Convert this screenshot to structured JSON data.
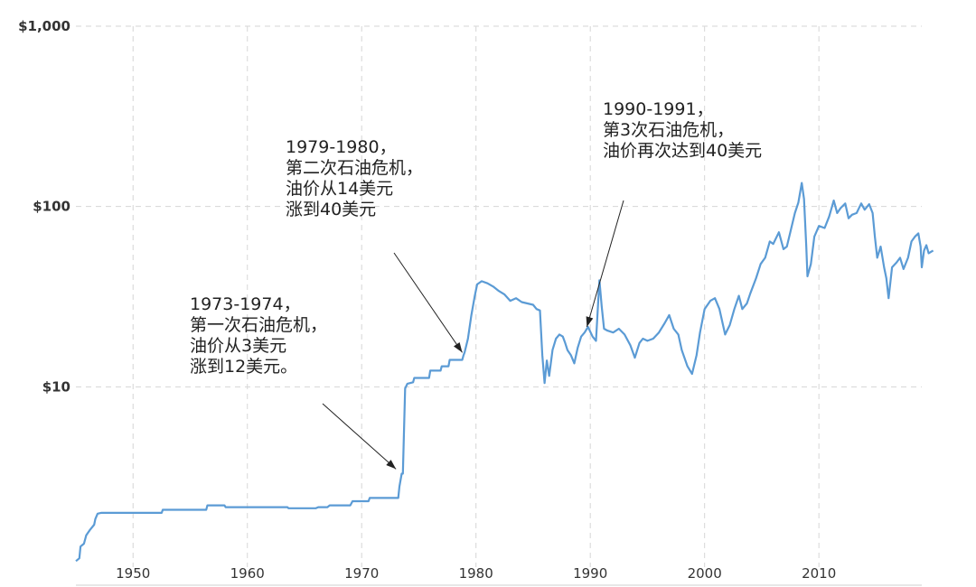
{
  "chart_data": {
    "type": "line",
    "title": "",
    "xlabel": "",
    "ylabel": "",
    "y_scale": "log",
    "ylim": [
      1,
      1000
    ],
    "xlim": [
      1945,
      2019
    ],
    "y_ticks": [
      {
        "value": 10,
        "label": "$10"
      },
      {
        "value": 100,
        "label": "$100"
      },
      {
        "value": 1000,
        "label": "$1,000"
      }
    ],
    "x_ticks": [
      {
        "value": 1950,
        "label": "1950"
      },
      {
        "value": 1960,
        "label": "1960"
      },
      {
        "value": 1970,
        "label": "1970"
      },
      {
        "value": 1980,
        "label": "1980"
      },
      {
        "value": 1990,
        "label": "1990"
      },
      {
        "value": 2000,
        "label": "2000"
      },
      {
        "value": 2010,
        "label": "2010"
      }
    ],
    "grid": true,
    "colors": {
      "line": "#5b9bd5",
      "grid": "#d6d6d6",
      "text": "#222222"
    },
    "series": [
      {
        "points": [
          [
            1945.0,
            1.08
          ],
          [
            1945.3,
            1.12
          ],
          [
            1945.4,
            1.3
          ],
          [
            1945.7,
            1.35
          ],
          [
            1945.9,
            1.5
          ],
          [
            1946.2,
            1.6
          ],
          [
            1946.6,
            1.72
          ],
          [
            1946.7,
            1.85
          ],
          [
            1946.9,
            1.98
          ],
          [
            1947.2,
            2.0
          ],
          [
            1952.5,
            2.0
          ],
          [
            1952.6,
            2.08
          ],
          [
            1956.4,
            2.08
          ],
          [
            1956.5,
            2.2
          ],
          [
            1958.0,
            2.2
          ],
          [
            1958.1,
            2.15
          ],
          [
            1963.5,
            2.15
          ],
          [
            1963.6,
            2.12
          ],
          [
            1966.0,
            2.12
          ],
          [
            1966.2,
            2.15
          ],
          [
            1967.0,
            2.15
          ],
          [
            1967.2,
            2.2
          ],
          [
            1969.0,
            2.2
          ],
          [
            1969.2,
            2.32
          ],
          [
            1970.6,
            2.32
          ],
          [
            1970.7,
            2.42
          ],
          [
            1973.2,
            2.42
          ],
          [
            1973.3,
            2.8
          ],
          [
            1973.5,
            3.3
          ],
          [
            1973.6,
            3.3
          ],
          [
            1973.8,
            9.8
          ],
          [
            1974.0,
            10.4
          ],
          [
            1974.5,
            10.6
          ],
          [
            1974.6,
            11.2
          ],
          [
            1975.9,
            11.2
          ],
          [
            1976.0,
            12.3
          ],
          [
            1976.9,
            12.3
          ],
          [
            1977.0,
            13.0
          ],
          [
            1977.6,
            13.0
          ],
          [
            1977.7,
            14.1
          ],
          [
            1978.8,
            14.1
          ],
          [
            1978.9,
            14.9
          ],
          [
            1979.0,
            15.5
          ],
          [
            1979.3,
            18.5
          ],
          [
            1979.6,
            25.0
          ],
          [
            1979.9,
            32.0
          ],
          [
            1980.1,
            37.0
          ],
          [
            1980.5,
            38.5
          ],
          [
            1981.0,
            37.5
          ],
          [
            1981.5,
            36.0
          ],
          [
            1982.0,
            34.0
          ],
          [
            1982.5,
            32.5
          ],
          [
            1983.0,
            30.0
          ],
          [
            1983.5,
            31.0
          ],
          [
            1984.0,
            29.5
          ],
          [
            1984.5,
            29.0
          ],
          [
            1985.0,
            28.5
          ],
          [
            1985.3,
            27.0
          ],
          [
            1985.6,
            26.5
          ],
          [
            1985.8,
            15.0
          ],
          [
            1986.0,
            10.5
          ],
          [
            1986.2,
            14.0
          ],
          [
            1986.4,
            11.5
          ],
          [
            1986.7,
            16.0
          ],
          [
            1987.0,
            18.5
          ],
          [
            1987.3,
            19.5
          ],
          [
            1987.6,
            19.0
          ],
          [
            1987.8,
            17.5
          ],
          [
            1988.0,
            16.0
          ],
          [
            1988.3,
            15.0
          ],
          [
            1988.6,
            13.5
          ],
          [
            1988.9,
            16.5
          ],
          [
            1989.2,
            19.0
          ],
          [
            1989.5,
            20.0
          ],
          [
            1989.8,
            21.5
          ],
          [
            1990.2,
            19.0
          ],
          [
            1990.5,
            18.0
          ],
          [
            1990.7,
            30.0
          ],
          [
            1990.8,
            39.0
          ],
          [
            1991.0,
            28.0
          ],
          [
            1991.2,
            21.0
          ],
          [
            1991.5,
            20.5
          ],
          [
            1992.0,
            20.0
          ],
          [
            1992.5,
            21.0
          ],
          [
            1993.0,
            19.5
          ],
          [
            1993.5,
            17.0
          ],
          [
            1993.9,
            14.5
          ],
          [
            1994.3,
            17.5
          ],
          [
            1994.6,
            18.5
          ],
          [
            1995.0,
            18.0
          ],
          [
            1995.5,
            18.5
          ],
          [
            1996.0,
            20.0
          ],
          [
            1996.5,
            22.5
          ],
          [
            1996.9,
            25.0
          ],
          [
            1997.3,
            21.0
          ],
          [
            1997.7,
            19.5
          ],
          [
            1998.0,
            16.0
          ],
          [
            1998.5,
            13.0
          ],
          [
            1998.9,
            11.8
          ],
          [
            1999.3,
            15.0
          ],
          [
            1999.6,
            20.0
          ],
          [
            2000.0,
            27.0
          ],
          [
            2000.5,
            30.0
          ],
          [
            2000.9,
            31.0
          ],
          [
            2001.3,
            27.0
          ],
          [
            2001.8,
            19.5
          ],
          [
            2002.2,
            22.0
          ],
          [
            2002.6,
            27.0
          ],
          [
            2003.0,
            32.0
          ],
          [
            2003.3,
            27.0
          ],
          [
            2003.7,
            29.0
          ],
          [
            2004.0,
            33.0
          ],
          [
            2004.5,
            40.0
          ],
          [
            2004.9,
            48.0
          ],
          [
            2005.3,
            52.0
          ],
          [
            2005.7,
            64.0
          ],
          [
            2006.0,
            62.0
          ],
          [
            2006.5,
            72.0
          ],
          [
            2006.9,
            58.0
          ],
          [
            2007.2,
            60.0
          ],
          [
            2007.5,
            72.0
          ],
          [
            2007.9,
            92.0
          ],
          [
            2008.2,
            105.0
          ],
          [
            2008.5,
            135.0
          ],
          [
            2008.7,
            110.0
          ],
          [
            2008.9,
            60.0
          ],
          [
            2009.0,
            41.0
          ],
          [
            2009.3,
            48.0
          ],
          [
            2009.6,
            68.0
          ],
          [
            2010.0,
            78.0
          ],
          [
            2010.5,
            76.0
          ],
          [
            2010.9,
            88.0
          ],
          [
            2011.3,
            108.0
          ],
          [
            2011.6,
            92.0
          ],
          [
            2011.9,
            98.0
          ],
          [
            2012.3,
            104.0
          ],
          [
            2012.6,
            86.0
          ],
          [
            2012.9,
            90.0
          ],
          [
            2013.3,
            92.0
          ],
          [
            2013.7,
            104.0
          ],
          [
            2014.0,
            96.0
          ],
          [
            2014.4,
            103.0
          ],
          [
            2014.7,
            92.0
          ],
          [
            2014.9,
            68.0
          ],
          [
            2015.1,
            52.0
          ],
          [
            2015.4,
            60.0
          ],
          [
            2015.7,
            46.0
          ],
          [
            2015.9,
            40.0
          ],
          [
            2016.1,
            31.0
          ],
          [
            2016.4,
            46.0
          ],
          [
            2016.8,
            49.0
          ],
          [
            2017.1,
            52.0
          ],
          [
            2017.4,
            45.0
          ],
          [
            2017.8,
            52.0
          ],
          [
            2018.1,
            64.0
          ],
          [
            2018.4,
            68.0
          ],
          [
            2018.7,
            71.0
          ],
          [
            2018.9,
            60.0
          ],
          [
            2019.0,
            46.0
          ],
          [
            2019.2,
            57.0
          ],
          [
            2019.4,
            61.0
          ],
          [
            2019.6,
            55.0
          ],
          [
            2019.8,
            56.0
          ],
          [
            2020.0,
            57.0
          ]
        ]
      }
    ],
    "annotations": [
      {
        "lines": [
          "1973-1974，",
          "第一次石油危机，",
          "油价从3美元",
          "涨到12美元。"
        ],
        "target_x": 1973.0,
        "target_y": 3.5
      },
      {
        "lines": [
          "1979-1980，",
          "第二次石油危机，",
          "油价从14美元",
          "涨到40美元"
        ],
        "target_x": 1978.8,
        "target_y": 15.5
      },
      {
        "lines": [
          "1990-1991，",
          "第3次石油危机，",
          "油价再次达到40美元"
        ],
        "target_x": 1989.7,
        "target_y": 21.5
      }
    ]
  }
}
